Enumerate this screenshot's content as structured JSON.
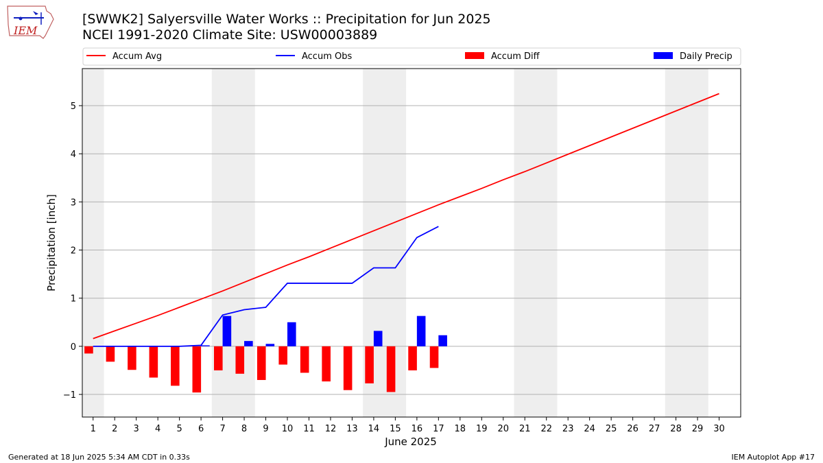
{
  "header": {
    "title_line1": "[SWWK2] Salyersville Water Works :: Precipitation for Jun 2025",
    "title_line2": "NCEI 1991-2020 Climate Site: USW00003889",
    "logo_text": "IEM"
  },
  "footer": {
    "left": "Generated at 18 Jun 2025 5:34 AM CDT in 0.33s",
    "right": "IEM Autoplot App #17"
  },
  "colors": {
    "accum_avg": "#ff0000",
    "accum_obs": "#0000ff",
    "accum_diff": "#ff0000",
    "daily_precip": "#0000ff",
    "weekend_band": "#eeeeee",
    "grid": "#b0b0b0"
  },
  "chart_data": {
    "type": "bar",
    "title": "[SWWK2] Salyersville Water Works :: Precipitation for Jun 2025",
    "subtitle": "NCEI 1991-2020 Climate Site: USW00003889",
    "xlabel": "June 2025",
    "ylabel": "Precipitation [inch]",
    "ylim": [
      -1.47,
      5.77
    ],
    "xlim": [
      0.5,
      31.0
    ],
    "yticks": [
      -1,
      0,
      1,
      2,
      3,
      4,
      5
    ],
    "ytick_labels": [
      "−1",
      "0",
      "1",
      "2",
      "3",
      "4",
      "5"
    ],
    "x": [
      1,
      2,
      3,
      4,
      5,
      6,
      7,
      8,
      9,
      10,
      11,
      12,
      13,
      14,
      15,
      16,
      17,
      18,
      19,
      20,
      21,
      22,
      23,
      24,
      25,
      26,
      27,
      28,
      29,
      30
    ],
    "xtick_labels": [
      "1",
      "2",
      "3",
      "4",
      "5",
      "6",
      "7",
      "8",
      "9",
      "10",
      "11",
      "12",
      "13",
      "14",
      "15",
      "16",
      "17",
      "18",
      "19",
      "20",
      "21",
      "22",
      "23",
      "24",
      "25",
      "26",
      "27",
      "28",
      "29",
      "30"
    ],
    "grid": "horizontal",
    "legend_position": "top",
    "weekend_bands": [
      [
        0.5,
        1.5
      ],
      [
        6.5,
        8.5
      ],
      [
        13.5,
        15.5
      ],
      [
        20.5,
        22.5
      ],
      [
        27.5,
        29.5
      ]
    ],
    "series": [
      {
        "name": "Accum Avg",
        "type": "line",
        "x": [
          1,
          2,
          3,
          4,
          5,
          6,
          7,
          8,
          9,
          10,
          11,
          12,
          13,
          14,
          15,
          16,
          17,
          18,
          19,
          20,
          21,
          22,
          23,
          24,
          25,
          26,
          27,
          28,
          29,
          30
        ],
        "values": [
          0.16,
          0.32,
          0.48,
          0.64,
          0.81,
          0.98,
          1.15,
          1.33,
          1.51,
          1.69,
          1.86,
          2.04,
          2.22,
          2.4,
          2.58,
          2.76,
          2.94,
          3.11,
          3.28,
          3.46,
          3.63,
          3.81,
          3.99,
          4.17,
          4.35,
          4.53,
          4.71,
          4.89,
          5.07,
          5.25
        ]
      },
      {
        "name": "Accum Obs",
        "type": "line",
        "x": [
          1,
          2,
          3,
          4,
          5,
          6,
          7,
          8,
          9,
          10,
          11,
          12,
          13,
          14,
          15,
          16,
          17
        ],
        "values": [
          0.0,
          0.0,
          0.0,
          0.0,
          0.0,
          0.02,
          0.65,
          0.76,
          0.81,
          1.31,
          1.31,
          1.31,
          1.31,
          1.63,
          1.63,
          2.26,
          2.49
        ]
      },
      {
        "name": "Accum Diff",
        "type": "bar",
        "x": [
          1,
          2,
          3,
          4,
          5,
          6,
          7,
          8,
          9,
          10,
          11,
          12,
          13,
          14,
          15,
          16,
          17
        ],
        "values": [
          -0.15,
          -0.32,
          -0.49,
          -0.65,
          -0.82,
          -0.96,
          -0.5,
          -0.57,
          -0.7,
          -0.38,
          -0.55,
          -0.73,
          -0.91,
          -0.77,
          -0.95,
          -0.5,
          -0.45
        ]
      },
      {
        "name": "Daily Precip",
        "type": "bar",
        "x": [
          1,
          2,
          3,
          4,
          5,
          6,
          7,
          8,
          9,
          10,
          11,
          12,
          13,
          14,
          15,
          16,
          17
        ],
        "values": [
          0,
          0,
          0,
          0,
          0,
          0.02,
          0.63,
          0.11,
          0.05,
          0.5,
          0,
          0,
          0,
          0.32,
          0,
          0.63,
          0.23
        ]
      }
    ]
  }
}
